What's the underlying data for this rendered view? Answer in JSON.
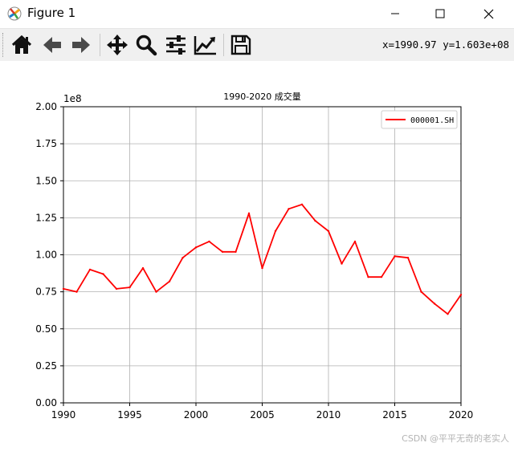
{
  "window": {
    "title": "Figure 1"
  },
  "toolbar": {
    "items": [
      {
        "name": "home-icon"
      },
      {
        "name": "back-arrow-icon"
      },
      {
        "name": "forward-arrow-icon"
      },
      {
        "name": "pan-icon"
      },
      {
        "name": "zoom-icon"
      },
      {
        "name": "subplots-config-icon"
      },
      {
        "name": "edit-axis-icon"
      },
      {
        "name": "save-icon"
      }
    ],
    "coordinates": "x=1990.97  y=1.603e+08"
  },
  "chart_data": {
    "type": "line",
    "title": "1990-2020 成交量",
    "xlabel": "",
    "ylabel": "",
    "offset_text": "1e8",
    "xlim": [
      1990,
      2020
    ],
    "ylim": [
      0,
      2.0
    ],
    "x_ticks": [
      "1990",
      "1995",
      "2000",
      "2005",
      "2010",
      "2015",
      "2020"
    ],
    "y_ticks": [
      "0.00",
      "0.25",
      "0.50",
      "0.75",
      "1.00",
      "1.25",
      "1.50",
      "1.75",
      "2.00"
    ],
    "grid": true,
    "legend_position": "top-right",
    "series": [
      {
        "name": "000001.SH",
        "color": "#ff0000",
        "x": [
          1990,
          1991,
          1992,
          1993,
          1994,
          1995,
          1996,
          1997,
          1998,
          1999,
          2000,
          2001,
          2002,
          2003,
          2004,
          2005,
          2006,
          2007,
          2008,
          2009,
          2010,
          2011,
          2012,
          2013,
          2014,
          2015,
          2016,
          2017,
          2018,
          2019,
          2020
        ],
        "y": [
          0.77,
          0.75,
          0.9,
          0.87,
          0.77,
          0.78,
          0.91,
          0.75,
          0.82,
          0.98,
          1.05,
          1.09,
          1.02,
          1.02,
          1.28,
          0.91,
          1.16,
          1.31,
          1.34,
          1.23,
          1.16,
          0.94,
          1.09,
          0.85,
          0.85,
          0.99,
          0.98,
          0.75,
          0.67,
          0.6,
          0.73
        ]
      }
    ]
  },
  "watermark": "CSDN @平平无奇的老实人"
}
